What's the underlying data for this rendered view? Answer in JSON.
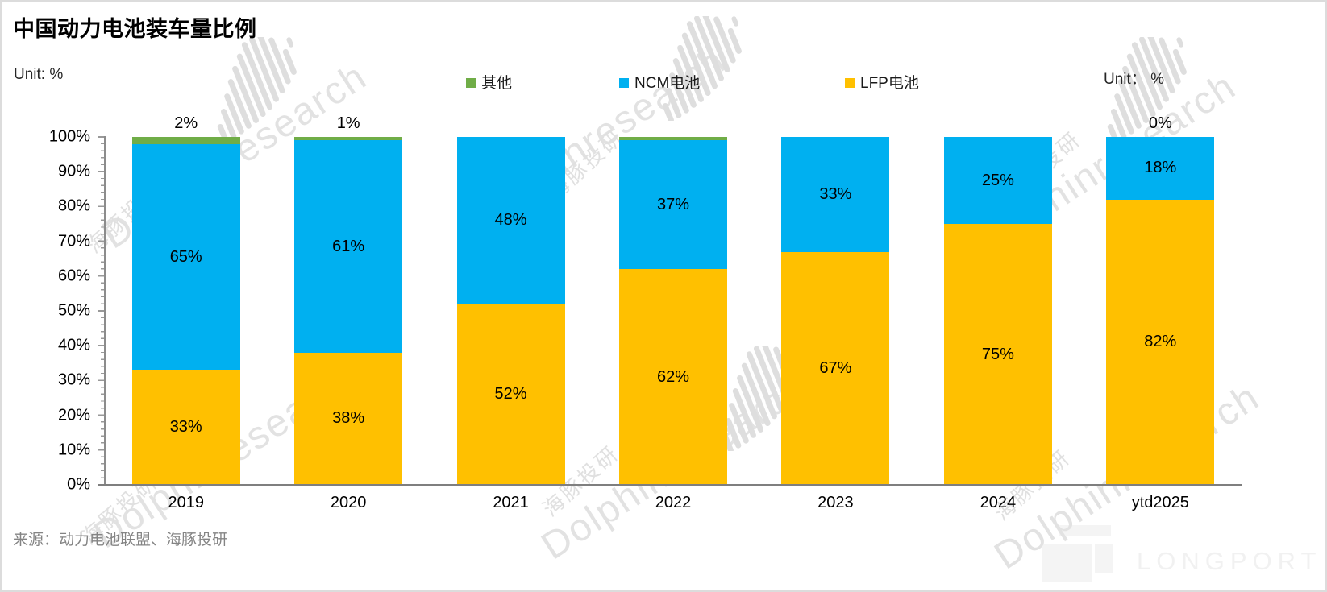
{
  "title": "中国动力电池装车量比例",
  "unit_left": "Unit: %",
  "unit_right": "Unit： %",
  "source": "来源：动力电池联盟、海豚投研",
  "legend": [
    {
      "label": "其他",
      "color": "#70AD47"
    },
    {
      "label": "NCM电池",
      "color": "#00B0F0"
    },
    {
      "label": "LFP电池",
      "color": "#FFC000"
    }
  ],
  "chart_data": {
    "type": "bar",
    "stacked": true,
    "unit": "%",
    "title": "中国动力电池装车量比例",
    "categories": [
      "2019",
      "2020",
      "2021",
      "2022",
      "2023",
      "2024",
      "ytd2025"
    ],
    "series": [
      {
        "name": "LFP电池",
        "color": "#FFC000",
        "values": [
          33,
          38,
          52,
          62,
          67,
          75,
          82
        ],
        "labels": [
          "33%",
          "38%",
          "52%",
          "62%",
          "67%",
          "75%",
          "82%"
        ]
      },
      {
        "name": "NCM电池",
        "color": "#00B0F0",
        "values": [
          65,
          61,
          48,
          37,
          33,
          25,
          18
        ],
        "labels": [
          "65%",
          "61%",
          "48%",
          "37%",
          "33%",
          "25%",
          "18%"
        ]
      },
      {
        "name": "其他",
        "color": "#70AD47",
        "values": [
          2,
          1,
          0,
          1,
          0,
          0,
          0
        ],
        "labels": [
          "",
          "",
          "",
          "",
          "",
          "",
          ""
        ]
      }
    ],
    "top_labels": [
      "2%",
      "1%",
      "",
      "",
      "",
      "",
      "0%"
    ],
    "y_ticks": [
      "100%",
      "90%",
      "80%",
      "70%",
      "60%",
      "50%",
      "40%",
      "30%",
      "20%",
      "10%",
      "0%"
    ],
    "ylim": [
      0,
      100
    ],
    "grid": false,
    "legend_position": "top"
  },
  "watermark": {
    "latin": "Dolphinresearch",
    "cn": "海豚投研",
    "brand": "LONGPORT"
  }
}
